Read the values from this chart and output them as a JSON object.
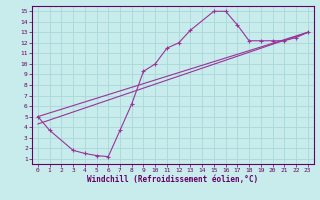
{
  "bg_color": "#c8ecec",
  "grid_color": "#a8d8d8",
  "line_color": "#993399",
  "xlabel": "Windchill (Refroidissement éolien,°C)",
  "xlim": [
    -0.5,
    23.5
  ],
  "ylim": [
    0.5,
    15.5
  ],
  "xticks": [
    0,
    1,
    2,
    3,
    4,
    5,
    6,
    7,
    8,
    9,
    10,
    11,
    12,
    13,
    14,
    15,
    16,
    17,
    18,
    19,
    20,
    21,
    22,
    23
  ],
  "yticks": [
    1,
    2,
    3,
    4,
    5,
    6,
    7,
    8,
    9,
    10,
    11,
    12,
    13,
    14,
    15
  ],
  "curve1_x": [
    0,
    1,
    3,
    4,
    5,
    6,
    7,
    8,
    9,
    10,
    11,
    12,
    13,
    15,
    16,
    17,
    18,
    19,
    20,
    21,
    22,
    23
  ],
  "curve1_y": [
    5.0,
    3.7,
    1.8,
    1.5,
    1.3,
    1.2,
    3.7,
    6.2,
    9.3,
    10.0,
    11.5,
    12.0,
    13.2,
    15.0,
    15.0,
    13.7,
    12.2,
    12.2,
    12.2,
    12.2,
    12.5,
    13.0
  ],
  "curve2_x": [
    0,
    23
  ],
  "curve2_y": [
    5.0,
    13.0
  ],
  "curve3_x": [
    0,
    23
  ],
  "curve3_y": [
    4.3,
    13.0
  ]
}
